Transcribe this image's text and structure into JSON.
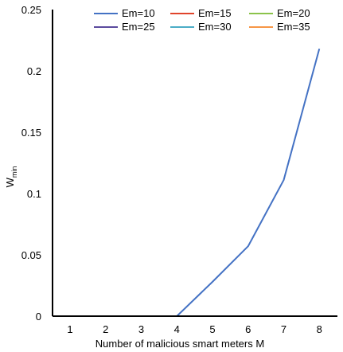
{
  "chart_data": {
    "type": "line",
    "title": "",
    "xlabel": "Number of malicious smart meters M",
    "ylabel": {
      "main": "W",
      "sub": "min"
    },
    "x": [
      1,
      2,
      3,
      4,
      5,
      6,
      7,
      8
    ],
    "xticks": [
      "1",
      "2",
      "3",
      "4",
      "5",
      "6",
      "7",
      "8"
    ],
    "yticks": [
      "0",
      "0.05",
      "0.1",
      "0.15",
      "0.2",
      "0.25"
    ],
    "ylim": [
      0,
      0.25
    ],
    "grid": false,
    "legend_position": "top-right",
    "series": [
      {
        "name": "Em=10",
        "color": "#4472C4",
        "values": [
          0,
          0,
          0,
          0,
          0.028,
          0.057,
          0.111,
          0.218
        ]
      },
      {
        "name": "Em=15",
        "color": "#E0442B",
        "values": [
          0,
          0,
          0,
          0,
          0,
          0,
          0,
          0
        ]
      },
      {
        "name": "Em=20",
        "color": "#8BC34A",
        "values": [
          0,
          0,
          0,
          0,
          0,
          0,
          0,
          0
        ]
      },
      {
        "name": "Em=25",
        "color": "#5B4A9E",
        "values": [
          0,
          0,
          0,
          0,
          0,
          0,
          0,
          0
        ]
      },
      {
        "name": "Em=30",
        "color": "#4BACC6",
        "values": [
          0,
          0,
          0,
          0,
          0,
          0,
          0,
          0
        ]
      },
      {
        "name": "Em=35",
        "color": "#F79646",
        "values": [
          0,
          0,
          0,
          0,
          0,
          0,
          0,
          0
        ]
      }
    ]
  }
}
